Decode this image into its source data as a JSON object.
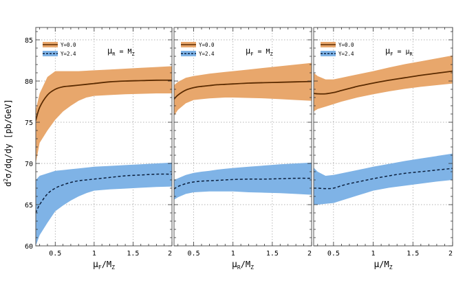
{
  "colors": {
    "band_y0": "#e8a76c",
    "band_y24": "#7fb3e6",
    "line": "#5a2a00",
    "dash_line": "#0a1e3c",
    "frame": "#555555"
  },
  "chart_data": [
    {
      "type": "area",
      "panel": "left",
      "xlabel": {
        "main": "μ",
        "sub1": "F",
        "mid": "/M",
        "sub2": "Z"
      },
      "ylabel": {
        "pre": "d",
        "sup": "2",
        "post": "σ/dq/dy  [pb/GeV]"
      },
      "condition": {
        "main": "μ",
        "sub1": "R",
        "mid": "  =  M",
        "sub2": "Z"
      },
      "legend": [
        "Y=0.0",
        "Y=2.4"
      ],
      "xlim": [
        0.25,
        2.0
      ],
      "ylim": [
        60,
        86.5
      ],
      "xticks": [
        0.5,
        1,
        1.5,
        2
      ],
      "xtick_labels": [
        "0.5",
        "1",
        "1.5",
        "2"
      ],
      "yticks": [
        60,
        65,
        70,
        75,
        80,
        85
      ],
      "ytick_labels": [
        "60",
        "65",
        "70",
        "75",
        "80",
        "85"
      ],
      "series": [
        {
          "name": "Y=0.0",
          "x": [
            0.25,
            0.3,
            0.4,
            0.5,
            0.6,
            0.7,
            0.8,
            0.9,
            1.0,
            1.2,
            1.4,
            1.6,
            1.8,
            2.0
          ],
          "central": [
            75.2,
            76.8,
            78.3,
            79.0,
            79.3,
            79.4,
            79.5,
            79.6,
            79.7,
            79.9,
            80.0,
            80.05,
            80.1,
            80.1
          ],
          "upper": [
            76.5,
            78.5,
            80.5,
            81.2,
            81.2,
            81.2,
            81.2,
            81.25,
            81.3,
            81.4,
            81.5,
            81.6,
            81.7,
            81.8
          ],
          "lower": [
            70.0,
            72.5,
            74.0,
            75.3,
            76.3,
            77.0,
            77.6,
            78.0,
            78.2,
            78.3,
            78.4,
            78.45,
            78.5,
            78.5
          ]
        },
        {
          "name": "Y=2.4",
          "x": [
            0.25,
            0.3,
            0.4,
            0.5,
            0.6,
            0.7,
            0.8,
            0.9,
            1.0,
            1.2,
            1.4,
            1.6,
            1.8,
            2.0
          ],
          "central": [
            64.0,
            65.0,
            66.3,
            67.0,
            67.4,
            67.7,
            67.9,
            68.0,
            68.1,
            68.3,
            68.5,
            68.6,
            68.7,
            68.7
          ],
          "upper": [
            68.0,
            68.5,
            68.8,
            69.1,
            69.2,
            69.3,
            69.4,
            69.5,
            69.6,
            69.7,
            69.8,
            69.9,
            70.0,
            70.1
          ],
          "lower": [
            60.0,
            61.3,
            62.8,
            64.2,
            64.9,
            65.5,
            66.0,
            66.4,
            66.7,
            66.85,
            66.95,
            67.05,
            67.15,
            67.2
          ]
        }
      ]
    },
    {
      "type": "area",
      "panel": "middle",
      "xlabel": {
        "main": "μ",
        "sub1": "R",
        "mid": "/M",
        "sub2": "Z"
      },
      "condition": {
        "main": "μ",
        "sub1": "F",
        "mid": "  =  M",
        "sub2": "Z"
      },
      "legend": [
        "Y=0.0",
        "Y=2.4"
      ],
      "xlim": [
        0.25,
        2.0
      ],
      "ylim": [
        60,
        86.5
      ],
      "xticks": [
        0.5,
        1,
        1.5,
        2
      ],
      "xtick_labels": [
        "0.5",
        "1",
        "1.5",
        "2"
      ],
      "yticks": [
        60,
        65,
        70,
        75,
        80,
        85
      ],
      "series": [
        {
          "name": "Y=0.0",
          "x": [
            0.25,
            0.3,
            0.4,
            0.5,
            0.6,
            0.7,
            0.8,
            0.9,
            1.0,
            1.2,
            1.4,
            1.6,
            1.8,
            2.0
          ],
          "central": [
            77.8,
            78.3,
            78.9,
            79.2,
            79.35,
            79.45,
            79.55,
            79.6,
            79.65,
            79.75,
            79.8,
            79.85,
            79.9,
            79.95
          ],
          "upper": [
            79.5,
            79.9,
            80.4,
            80.6,
            80.75,
            80.9,
            81.0,
            81.1,
            81.2,
            81.4,
            81.6,
            81.8,
            82.0,
            82.2
          ],
          "lower": [
            75.8,
            76.5,
            77.3,
            77.7,
            77.8,
            77.9,
            77.95,
            78.0,
            78.0,
            77.95,
            77.9,
            77.8,
            77.7,
            77.6
          ]
        },
        {
          "name": "Y=2.4",
          "x": [
            0.25,
            0.3,
            0.4,
            0.5,
            0.6,
            0.7,
            0.8,
            0.9,
            1.0,
            1.2,
            1.4,
            1.6,
            1.8,
            2.0
          ],
          "central": [
            66.9,
            67.2,
            67.55,
            67.75,
            67.85,
            67.9,
            67.95,
            68.0,
            68.05,
            68.1,
            68.1,
            68.15,
            68.2,
            68.2
          ],
          "upper": [
            68.0,
            68.2,
            68.6,
            68.85,
            69.0,
            69.1,
            69.25,
            69.35,
            69.45,
            69.6,
            69.75,
            69.9,
            70.0,
            70.1
          ],
          "lower": [
            65.6,
            65.9,
            66.3,
            66.5,
            66.55,
            66.6,
            66.6,
            66.6,
            66.6,
            66.5,
            66.45,
            66.4,
            66.3,
            66.2
          ]
        }
      ]
    },
    {
      "type": "area",
      "panel": "right",
      "xlabel": {
        "main": "μ",
        "sub1": "",
        "mid": "/M",
        "sub2": "Z"
      },
      "condition": {
        "main": "μ",
        "sub1": "F",
        "mid": "  =  μ",
        "sub2": "R"
      },
      "legend": [
        "Y=0.0",
        "Y=2.4"
      ],
      "xlim": [
        0.25,
        2.0
      ],
      "ylim": [
        60,
        86.5
      ],
      "xticks": [
        0.5,
        1,
        1.5,
        2
      ],
      "xtick_labels": [
        "0.5",
        "1",
        "1.5",
        "2"
      ],
      "yticks": [
        60,
        65,
        70,
        75,
        80,
        85
      ],
      "series": [
        {
          "name": "Y=0.0",
          "x": [
            0.25,
            0.3,
            0.4,
            0.5,
            0.6,
            0.7,
            0.8,
            0.9,
            1.0,
            1.2,
            1.4,
            1.6,
            1.8,
            2.0
          ],
          "central": [
            78.5,
            78.45,
            78.45,
            78.6,
            78.85,
            79.1,
            79.35,
            79.55,
            79.75,
            80.1,
            80.4,
            80.7,
            80.95,
            81.2
          ],
          "upper": [
            81.0,
            80.6,
            80.2,
            80.2,
            80.4,
            80.6,
            80.8,
            81.0,
            81.2,
            81.65,
            82.05,
            82.4,
            82.75,
            83.1
          ],
          "lower": [
            76.3,
            76.6,
            76.9,
            77.2,
            77.5,
            77.75,
            78.0,
            78.2,
            78.4,
            78.75,
            79.05,
            79.3,
            79.5,
            79.7
          ]
        },
        {
          "name": "Y=2.4",
          "x": [
            0.25,
            0.3,
            0.4,
            0.5,
            0.6,
            0.7,
            0.8,
            0.9,
            1.0,
            1.2,
            1.4,
            1.6,
            1.8,
            2.0
          ],
          "central": [
            67.0,
            67.0,
            66.95,
            67.0,
            67.3,
            67.55,
            67.75,
            67.95,
            68.15,
            68.5,
            68.8,
            69.0,
            69.2,
            69.4
          ],
          "upper": [
            69.5,
            69.0,
            68.5,
            68.6,
            68.8,
            69.0,
            69.2,
            69.4,
            69.6,
            69.95,
            70.3,
            70.6,
            70.9,
            71.2
          ],
          "lower": [
            65.0,
            65.0,
            65.1,
            65.2,
            65.5,
            65.8,
            66.1,
            66.4,
            66.7,
            67.05,
            67.3,
            67.55,
            67.8,
            68.0
          ]
        }
      ]
    }
  ]
}
